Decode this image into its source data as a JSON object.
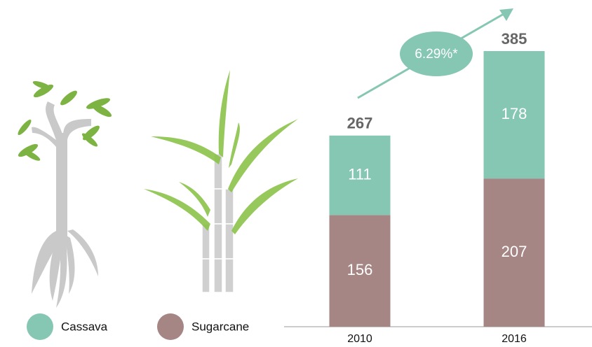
{
  "chart_data": {
    "type": "stacked-bar",
    "categories": [
      "2010",
      "2016"
    ],
    "series": [
      {
        "name": "Cassava",
        "color": "#86c7b3",
        "values": [
          111,
          178
        ]
      },
      {
        "name": "Sugarcane",
        "color": "#a68585",
        "values": [
          156,
          207
        ]
      }
    ],
    "totals": [
      267,
      385
    ],
    "annotation": "6.29%*"
  }
}
